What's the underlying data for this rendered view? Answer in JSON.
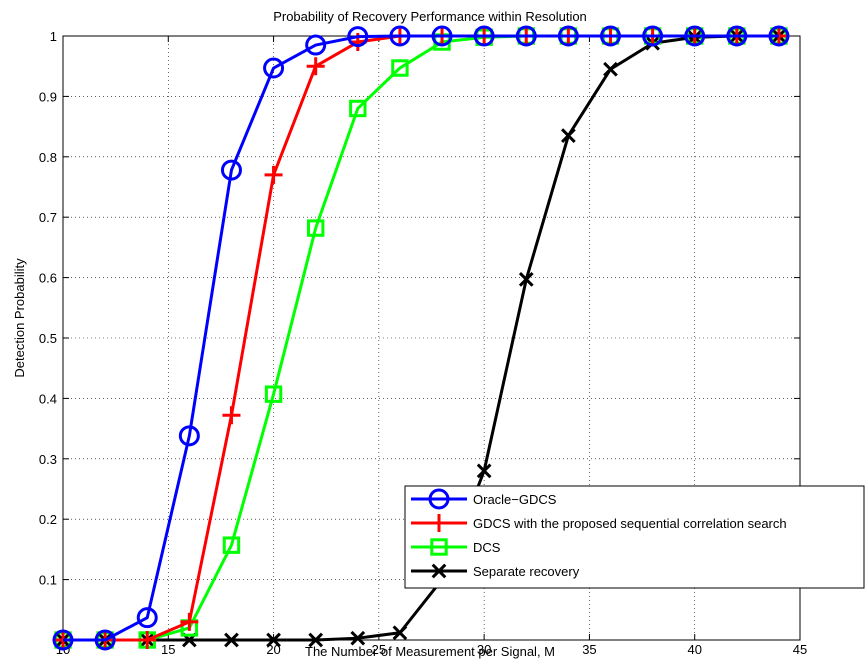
{
  "chart_data": {
    "type": "line",
    "title": "Probability of Recovery Performance within Resolution",
    "xlabel": "The Number of Measurement per Signal, M",
    "ylabel": "Detection Probability",
    "xlim": [
      10,
      45
    ],
    "ylim": [
      0,
      1
    ],
    "xticks": [
      10,
      15,
      20,
      25,
      30,
      35,
      40,
      45
    ],
    "yticks": [
      0.1,
      0.2,
      0.3,
      0.4,
      0.5,
      0.6,
      0.7,
      0.8,
      0.9,
      1
    ],
    "grid": true,
    "legend_position": "bottom-right",
    "x": [
      10,
      12,
      14,
      16,
      18,
      20,
      22,
      24,
      26,
      28,
      30,
      32,
      34,
      36,
      38,
      40,
      42,
      44
    ],
    "series": [
      {
        "name": "Oracle−GDCS",
        "color": "#0000ff",
        "marker": "circle",
        "values": [
          0,
          0,
          0.037,
          0.338,
          0.778,
          0.947,
          0.985,
          0.999,
          1,
          1,
          1,
          1,
          1,
          1,
          1,
          1,
          1,
          1
        ]
      },
      {
        "name": "GDCS with the proposed sequential correlation search",
        "color": "#ff0000",
        "marker": "plus",
        "values": [
          0,
          0,
          0,
          0.03,
          0.372,
          0.77,
          0.95,
          0.99,
          1,
          1,
          1,
          1,
          1,
          1,
          1,
          1,
          1,
          1
        ]
      },
      {
        "name": "DCS",
        "color": "#00ff00",
        "marker": "square",
        "values": [
          0,
          0,
          0,
          0.02,
          0.157,
          0.407,
          0.682,
          0.88,
          0.947,
          0.99,
          0.998,
          1,
          1,
          1,
          1,
          1,
          1,
          1
        ]
      },
      {
        "name": "Separate recovery",
        "color": "#000000",
        "marker": "x",
        "values": [
          0,
          0,
          0,
          0,
          0,
          0,
          0,
          0.003,
          0.012,
          0.1,
          0.28,
          0.597,
          0.835,
          0.945,
          0.988,
          0.998,
          1,
          1
        ]
      }
    ]
  }
}
